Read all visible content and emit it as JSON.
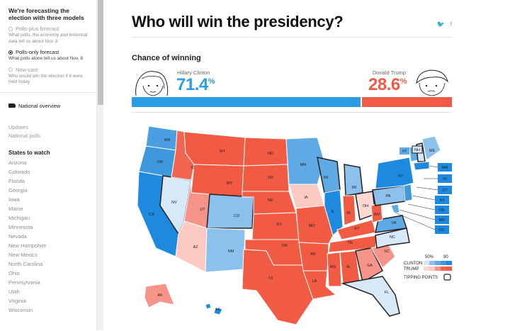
{
  "sidebar": {
    "title": "We're forecasting the election with three models",
    "models": [
      {
        "label": "Polls-plus forecast",
        "desc": "What polls, the economy and historical data tell us about Nov. 8"
      },
      {
        "label": "Polls-only forecast",
        "desc": "What polls alone tell us about Nov. 8"
      },
      {
        "label": "Now-cast",
        "desc": "Who would win the election if it were held today"
      }
    ],
    "national_overview": "National overview",
    "links": [
      "Updates",
      "National polls"
    ],
    "states_title": "States to watch",
    "states": [
      "Arizona",
      "Colorado",
      "Florida",
      "Georgia",
      "Iowa",
      "Maine",
      "Michigan",
      "Minnesota",
      "Nevada",
      "New Hampshire",
      "New Mexico",
      "North Carolina",
      "Ohio",
      "Pennsylvania",
      "Utah",
      "Virginia",
      "Wisconsin"
    ]
  },
  "header": {
    "title": "Who will win the presidency?",
    "share_icons": [
      "twitter-icon",
      "facebook-icon"
    ],
    "twitter_glyph": "🐦",
    "facebook_glyph": "f"
  },
  "chance": {
    "title": "Chance of winning",
    "clinton": {
      "name": "Hillary Clinton",
      "value": "71.4",
      "unit": "%",
      "color": "#2b9de4",
      "share": 71.4
    },
    "trump": {
      "name": "Donald Trump",
      "value": "28.6",
      "unit": "%",
      "color": "#f15b44",
      "share": 28.6
    }
  },
  "map": {
    "states": {
      "WA": "WA",
      "OR": "OR",
      "CA": "CA",
      "NV": "NV",
      "ID": "ID",
      "MT": "MT",
      "WY": "WY",
      "UT": "UT",
      "AZ": "AZ",
      "CO": "CO",
      "NM": "NM",
      "ND": "ND",
      "SD": "SD",
      "NE": "NE",
      "KS": "KS",
      "OK": "OK",
      "TX": "TX",
      "MN": "MN",
      "IA": "IA",
      "MO": "MO",
      "AR": "AR",
      "LA": "LA",
      "WI": "WI",
      "IL": "IL",
      "MI": "MI",
      "IN": "IN",
      "OH": "OH",
      "KY": "KY",
      "TN": "TN",
      "MS": "MS",
      "AL": "AL",
      "GA": "GA",
      "FL": "FL",
      "SC": "SC",
      "NC": "NC",
      "VA": "VA",
      "WV": "WV",
      "PA": "PA",
      "NY": "NY",
      "VT": "VT",
      "NH": "NH",
      "ME": "ME",
      "MA": "MA",
      "RI": "RI",
      "CT": "CT",
      "NJ": "NJ",
      "DE": "DE",
      "MD": "MD",
      "DC": "DC",
      "AK": "AK",
      "HI": "HI"
    },
    "legend": {
      "scale_low": "50%",
      "scale_high": "90",
      "clinton": "CLINTON",
      "trump": "TRUMP",
      "tipping": "TIPPING POINTS"
    }
  }
}
